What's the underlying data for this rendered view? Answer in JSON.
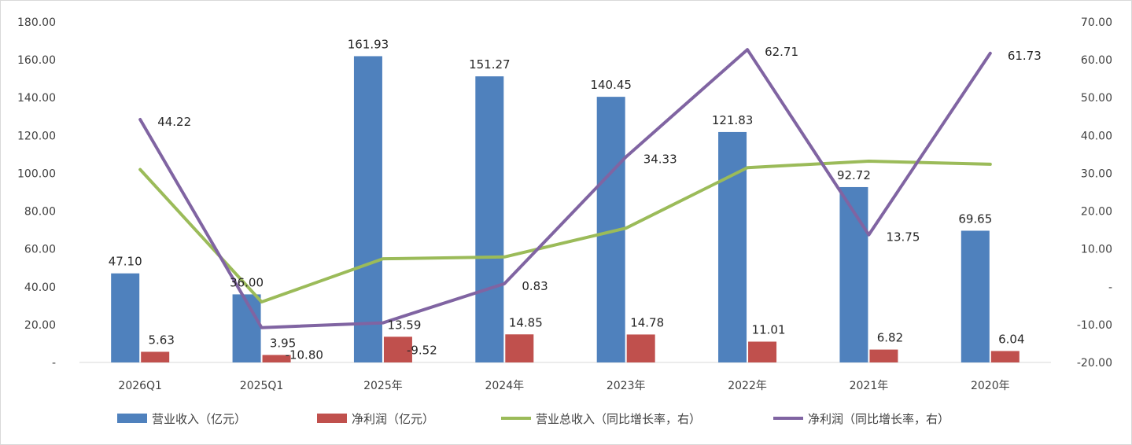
{
  "chart_data": {
    "type": "bar",
    "categories": [
      "2026Q1",
      "2025Q1",
      "2025年",
      "2024年",
      "2023年",
      "2022年",
      "2021年",
      "2020年"
    ],
    "series": [
      {
        "name": "营业收入（亿元）",
        "type": "bar",
        "axis": "left",
        "color": "#4f81bd",
        "values": [
          47.1,
          36.0,
          161.93,
          151.27,
          140.45,
          121.83,
          92.72,
          69.65
        ],
        "labels": [
          "47.10",
          "36.00",
          "161.93",
          "151.27",
          "140.45",
          "121.83",
          "92.72",
          "69.65"
        ]
      },
      {
        "name": "净利润（亿元）",
        "type": "bar",
        "axis": "left",
        "color": "#c0504d",
        "values": [
          5.63,
          3.95,
          13.59,
          14.85,
          14.78,
          11.01,
          6.82,
          6.04
        ],
        "labels": [
          "5.63",
          "3.95",
          "13.59",
          "14.85",
          "14.78",
          "11.01",
          "6.82",
          "6.04"
        ]
      },
      {
        "name": "营业总收入（同比增长率，右）",
        "type": "line",
        "axis": "right",
        "color": "#9bbb59",
        "values": [
          31.0,
          -4.0,
          7.4,
          7.9,
          15.5,
          31.5,
          33.2,
          32.4
        ],
        "labels": []
      },
      {
        "name": "净利润（同比增长率，右）",
        "type": "line",
        "axis": "right",
        "color": "#8064a2",
        "values": [
          44.22,
          -10.8,
          -9.52,
          0.83,
          34.33,
          62.71,
          13.75,
          61.73
        ],
        "labels": [
          "44.22",
          "-10.80",
          "-9.52",
          "0.83",
          "34.33",
          "62.71",
          "13.75",
          "61.73"
        ]
      }
    ],
    "y_left": {
      "ylim": [
        0,
        180
      ],
      "ticks": [
        "-",
        "20.00",
        "40.00",
        "60.00",
        "80.00",
        "100.00",
        "120.00",
        "140.00",
        "160.00",
        "180.00"
      ]
    },
    "y_right": {
      "ylim": [
        -20,
        70
      ],
      "ticks": [
        "-20.00",
        "-10.00",
        "-",
        "10.00",
        "20.00",
        "30.00",
        "40.00",
        "50.00",
        "60.00",
        "70.00"
      ]
    },
    "grid": false,
    "legend": "bottom"
  }
}
